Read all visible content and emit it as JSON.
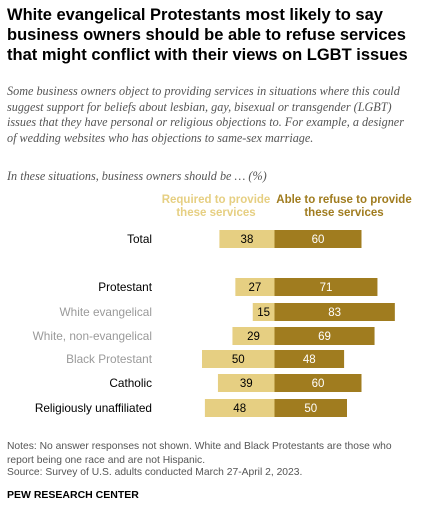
{
  "title": "White evangelical Protestants most likely to say business owners should be able to refuse services that might conflict with their views on LGBT issues",
  "subtitle": "Some business owners object to providing services in situations where this could suggest support for beliefs about lesbian, gay, bisexual or transgender (LGBT) issues that they have personal or religious objections to. For example, a designer of wedding websites who has objections to same-sex marriage.",
  "question": "In these situations, business owners should be … (%)",
  "colors": {
    "required": "#e6cf82",
    "refuse": "#a07c1f",
    "label_main": "#000000",
    "label_sub": "#9a9a9a"
  },
  "chart_data": {
    "type": "bar",
    "orientation": "diverging-horizontal",
    "categories": [
      "Total",
      "Protestant",
      "White evangelical",
      "White, non-evangelical",
      "Black Protestant",
      "Catholic",
      "Religiously unaffiliated"
    ],
    "category_level": [
      "main",
      "main",
      "sub",
      "sub",
      "sub",
      "main",
      "main"
    ],
    "series": [
      {
        "name": "Required to provide these services",
        "values": [
          38,
          27,
          15,
          29,
          50,
          39,
          48
        ]
      },
      {
        "name": "Able to refuse to provide these services",
        "values": [
          60,
          71,
          83,
          69,
          48,
          60,
          50
        ]
      }
    ]
  },
  "notes": "Notes: No answer responses not shown. White and Black Protestants are those who report being one race and are not Hispanic.",
  "source": "Source: Survey of U.S. adults conducted March 27-April 2, 2023.",
  "footer": "PEW RESEARCH CENTER"
}
